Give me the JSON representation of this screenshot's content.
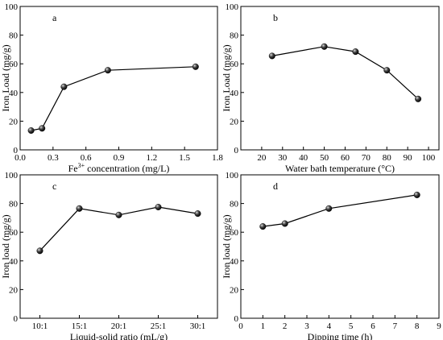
{
  "panels": [
    {
      "panel_label": "a",
      "xlabel": "Fe3+ concentration (mg/L)",
      "xlabel_parts": [
        "Fe",
        "3+",
        " concentration (mg/L)"
      ],
      "ylabel": "Iron Load (mg/g)",
      "xlim": [
        0,
        1.8
      ],
      "ylim": [
        0,
        100
      ],
      "x_ticks": [
        0.0,
        0.3,
        0.6,
        0.9,
        1.2,
        1.5,
        1.8
      ],
      "x_tick_labels": [
        "0.0",
        "0.3",
        "0.6",
        "0.9",
        "1.2",
        "1.5",
        "1.8"
      ],
      "y_ticks": [
        0,
        20,
        40,
        60,
        80,
        100
      ],
      "y_tick_labels": [
        "0",
        "20",
        "40",
        "60",
        "80",
        "100"
      ]
    },
    {
      "panel_label": "b",
      "xlabel": "Water bath temperature (°C)",
      "ylabel": "Iron Load (mg/g)",
      "xlim": [
        10,
        105
      ],
      "ylim": [
        0,
        100
      ],
      "x_ticks": [
        20,
        30,
        40,
        50,
        60,
        70,
        80,
        90,
        100
      ],
      "x_tick_labels": [
        "20",
        "30",
        "40",
        "50",
        "60",
        "70",
        "80",
        "90",
        "100"
      ],
      "y_ticks": [
        0,
        20,
        40,
        60,
        80,
        100
      ],
      "y_tick_labels": [
        "0",
        "20",
        "40",
        "60",
        "80",
        "100"
      ]
    },
    {
      "panel_label": "c",
      "xlabel": "Liquid-solid ratio (mL/g)",
      "ylabel": "Iron load (mg/g)",
      "xlim": [
        0.5,
        5.5
      ],
      "ylim": [
        0,
        100
      ],
      "x_ticks": [
        1,
        2,
        3,
        4,
        5
      ],
      "x_tick_labels": [
        "10:1",
        "15:1",
        "20:1",
        "25:1",
        "30:1"
      ],
      "y_ticks": [
        0,
        20,
        40,
        60,
        80,
        100
      ],
      "y_tick_labels": [
        "0",
        "20",
        "40",
        "60",
        "80",
        "100"
      ]
    },
    {
      "panel_label": "d",
      "xlabel": "Dipping time (h)",
      "ylabel": "Iron load (mg/g)",
      "xlim": [
        0,
        9
      ],
      "ylim": [
        0,
        100
      ],
      "x_ticks": [
        0,
        1,
        2,
        3,
        4,
        5,
        6,
        7,
        8,
        9
      ],
      "x_tick_labels": [
        "0",
        "1",
        "2",
        "3",
        "4",
        "5",
        "6",
        "7",
        "8",
        "9"
      ],
      "y_ticks": [
        0,
        20,
        40,
        60,
        80,
        100
      ],
      "y_tick_labels": [
        "0",
        "20",
        "40",
        "60",
        "80",
        "100"
      ]
    }
  ],
  "chart_data": [
    {
      "type": "line",
      "title": "a",
      "xlabel": "Fe3+ concentration (mg/L)",
      "ylabel": "Iron Load (mg/g)",
      "xlim": [
        0,
        1.8
      ],
      "ylim": [
        0,
        100
      ],
      "grid": false,
      "x": [
        0.1,
        0.2,
        0.4,
        0.8,
        1.6
      ],
      "values": [
        13.5,
        15,
        44,
        55.5,
        58
      ]
    },
    {
      "type": "line",
      "title": "b",
      "xlabel": "Water bath temperature (°C)",
      "ylabel": "Iron Load (mg/g)",
      "xlim": [
        10,
        105
      ],
      "ylim": [
        0,
        100
      ],
      "grid": false,
      "x": [
        25,
        50,
        65,
        80,
        95
      ],
      "values": [
        65.5,
        72,
        68.5,
        55.5,
        35.5
      ]
    },
    {
      "type": "line",
      "title": "c",
      "xlabel": "Liquid-solid ratio (mL/g)",
      "ylabel": "Iron load (mg/g)",
      "ylim": [
        0,
        100
      ],
      "grid": false,
      "categories": [
        "10:1",
        "15:1",
        "20:1",
        "25:1",
        "30:1"
      ],
      "values": [
        47,
        76.5,
        72,
        77.5,
        73
      ]
    },
    {
      "type": "line",
      "title": "d",
      "xlabel": "Dipping time (h)",
      "ylabel": "Iron load (mg/g)",
      "xlim": [
        0,
        9
      ],
      "ylim": [
        0,
        100
      ],
      "grid": false,
      "x": [
        1,
        2,
        4,
        8
      ],
      "values": [
        64,
        66,
        76.5,
        86
      ]
    }
  ],
  "style": {
    "line_color": "#000000",
    "marker_color": "#111111",
    "marker_highlight": "#dddddd",
    "axis_color": "#000000",
    "background": "#ffffff"
  }
}
